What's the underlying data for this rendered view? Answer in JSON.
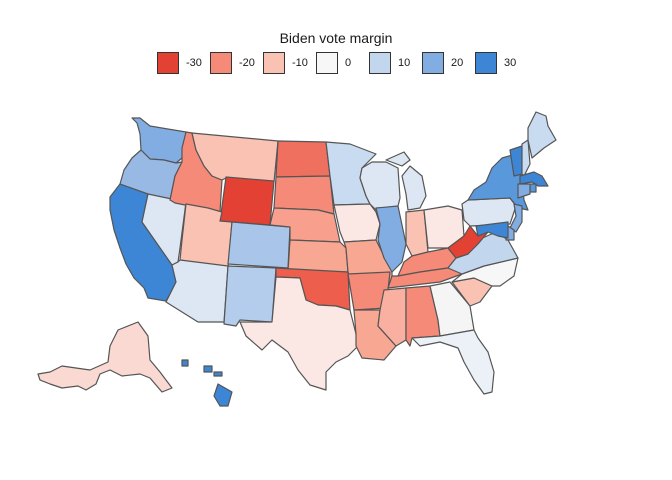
{
  "map": {
    "title": "Biden vote margin",
    "legend": [
      {
        "label": "-30",
        "color": "#e34133"
      },
      {
        "label": "-20",
        "color": "#f58a78"
      },
      {
        "label": "-10",
        "color": "#f9c2b3"
      },
      {
        "label": "0",
        "color": "#f7f7f7"
      },
      {
        "label": "10",
        "color": "#c2d6ee"
      },
      {
        "label": "20",
        "color": "#82ade2"
      },
      {
        "label": "30",
        "color": "#3d86d6"
      }
    ],
    "states": [
      {
        "id": "WA",
        "color": "#82ade2"
      },
      {
        "id": "OR",
        "color": "#98b9e3"
      },
      {
        "id": "CA",
        "color": "#3d86d6"
      },
      {
        "id": "NV",
        "color": "#dde7f4"
      },
      {
        "id": "ID",
        "color": "#f58a78"
      },
      {
        "id": "MT",
        "color": "#f9c2b3"
      },
      {
        "id": "WY",
        "color": "#e34133"
      },
      {
        "id": "UT",
        "color": "#f9c2b3"
      },
      {
        "id": "AZ",
        "color": "#dde7f4"
      },
      {
        "id": "CO",
        "color": "#a9c6ea"
      },
      {
        "id": "NM",
        "color": "#b5cdec"
      },
      {
        "id": "ND",
        "color": "#f07060"
      },
      {
        "id": "SD",
        "color": "#f58a78"
      },
      {
        "id": "NE",
        "color": "#f8a08d"
      },
      {
        "id": "KS",
        "color": "#f8a892"
      },
      {
        "id": "OK",
        "color": "#ee5e4d"
      },
      {
        "id": "TX",
        "color": "#fbe8e5"
      },
      {
        "id": "MN",
        "color": "#c9dbf0"
      },
      {
        "id": "IA",
        "color": "#fbe8e5"
      },
      {
        "id": "MO",
        "color": "#f8a892"
      },
      {
        "id": "AR",
        "color": "#f58a78"
      },
      {
        "id": "LA",
        "color": "#f8a892"
      },
      {
        "id": "WI",
        "color": "#dde7f4"
      },
      {
        "id": "IL",
        "color": "#82ade2"
      },
      {
        "id": "MI",
        "color": "#dde7f4"
      },
      {
        "id": "IN",
        "color": "#f9c2b3"
      },
      {
        "id": "OH",
        "color": "#fbe8e5"
      },
      {
        "id": "KY",
        "color": "#f58a78"
      },
      {
        "id": "TN",
        "color": "#f58a78"
      },
      {
        "id": "MS",
        "color": "#f9b0a0"
      },
      {
        "id": "AL",
        "color": "#f58a78"
      },
      {
        "id": "GA",
        "color": "#f5f5f5"
      },
      {
        "id": "FL",
        "color": "#ecf1f8"
      },
      {
        "id": "SC",
        "color": "#f9c2b3"
      },
      {
        "id": "NC",
        "color": "#f7f7f7"
      },
      {
        "id": "VA",
        "color": "#c2d6ee"
      },
      {
        "id": "WV",
        "color": "#e34133"
      },
      {
        "id": "PA",
        "color": "#dde7f4"
      },
      {
        "id": "NY",
        "color": "#5a98dc"
      },
      {
        "id": "VT",
        "color": "#3d86d6"
      },
      {
        "id": "NH",
        "color": "#c9dbf0"
      },
      {
        "id": "ME",
        "color": "#c9dbf0"
      },
      {
        "id": "MA",
        "color": "#3d86d6"
      },
      {
        "id": "RI",
        "color": "#5a98dc"
      },
      {
        "id": "CT",
        "color": "#82ade2"
      },
      {
        "id": "NJ",
        "color": "#82ade2"
      },
      {
        "id": "DE",
        "color": "#82ade2"
      },
      {
        "id": "MD",
        "color": "#3d86d6"
      },
      {
        "id": "AK",
        "color": "#f9d9d1"
      },
      {
        "id": "HI",
        "color": "#3d86d6"
      }
    ]
  }
}
